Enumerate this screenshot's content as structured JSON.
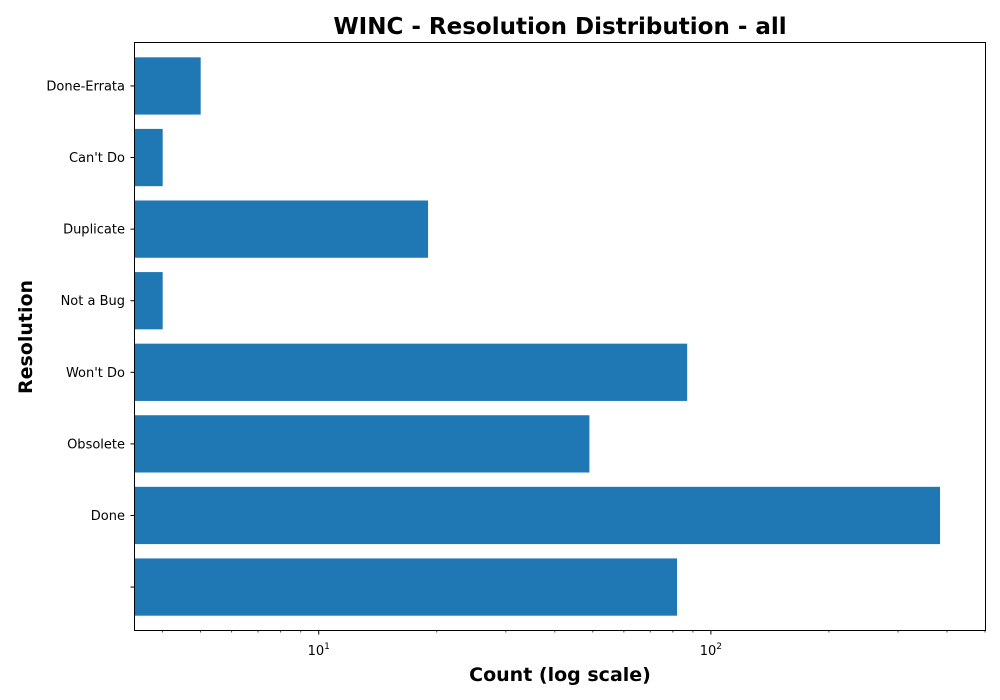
{
  "chart_data": {
    "type": "bar",
    "orientation": "horizontal",
    "title": "WINC - Resolution Distribution - all",
    "xlabel": "Count (log scale)",
    "ylabel": "Resolution",
    "x_scale": "log",
    "xlim": [
      3.4,
      500
    ],
    "x_ticks": [
      {
        "value": 10,
        "base": "10",
        "exp": "1"
      },
      {
        "value": 100,
        "base": "10",
        "exp": "2"
      }
    ],
    "categories": [
      "",
      "Done",
      "Obsolete",
      "Won't Do",
      "Not a Bug",
      "Duplicate",
      "Can't Do",
      "Done-Errata"
    ],
    "values": [
      82,
      384,
      49,
      87,
      4,
      19,
      4,
      5
    ],
    "bar_color": "#1f77b4",
    "grid": false
  }
}
